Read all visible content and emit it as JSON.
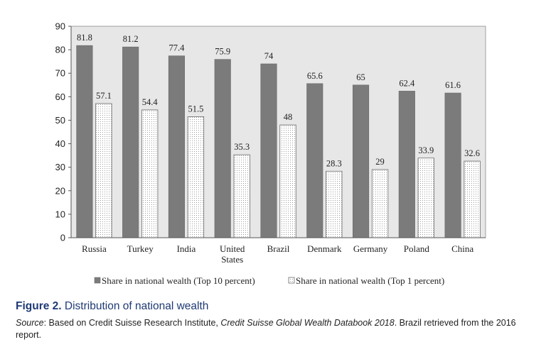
{
  "chart_data": {
    "type": "bar",
    "categories": [
      "Russia",
      "Turkey",
      "India",
      "United States",
      "Brazil",
      "Denmark",
      "Germany",
      "Poland",
      "China"
    ],
    "category_lines": [
      [
        "Russia"
      ],
      [
        "Turkey"
      ],
      [
        "India"
      ],
      [
        "United",
        "States"
      ],
      [
        "Brazil"
      ],
      [
        "Denmark"
      ],
      [
        "Germany"
      ],
      [
        "Poland"
      ],
      [
        "China"
      ]
    ],
    "series": [
      {
        "name": "Share in national wealth (Top 10 percent)",
        "values": [
          81.8,
          81.2,
          77.4,
          75.9,
          74,
          65.6,
          65,
          62.4,
          61.6
        ],
        "labels": [
          "81.8",
          "81.2",
          "77.4",
          "75.9",
          "74",
          "65.6",
          "65",
          "62.4",
          "61.6"
        ],
        "color": "#7b7b7b",
        "pattern": "solid"
      },
      {
        "name": "Share in national wealth (Top 1 percent)",
        "values": [
          57.1,
          54.4,
          51.5,
          35.3,
          48,
          28.3,
          29,
          33.9,
          32.6
        ],
        "labels": [
          "57.1",
          "54.4",
          "51.5",
          "35.3",
          "48",
          "28.3",
          "29",
          "33.9",
          "32.6"
        ],
        "color": "#ffffff",
        "pattern": "dotted"
      }
    ],
    "ylim": [
      0,
      90
    ],
    "yticks": [
      "0",
      "10",
      "20",
      "30",
      "40",
      "50",
      "60",
      "70",
      "80",
      "90"
    ],
    "grid": false,
    "legend_position": "bottom",
    "plot_background": "#e7e7e7"
  },
  "caption": {
    "figure_label": "Figure 2.",
    "title": "Distribution of national wealth",
    "source_label": "Source",
    "source_pre": ": Based on Credit Suisse Research Institute, ",
    "source_italic": "Credit Suisse Global Wealth Databook 2018",
    "source_post": ". Brazil retrieved from the 2016 report."
  }
}
